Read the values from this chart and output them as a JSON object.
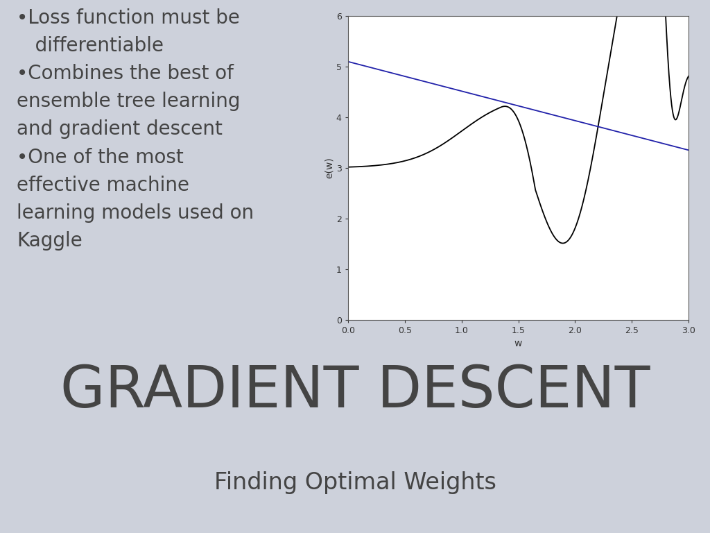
{
  "background_color": "#cdd1db",
  "title_main": "GRADIENT DESCENT",
  "title_sub": "Finding Optimal Weights",
  "plot_xlabel": "w",
  "plot_ylabel": "e(w)",
  "plot_xlim": [
    0.0,
    3.0
  ],
  "plot_ylim": [
    0.0,
    6.0
  ],
  "curve1_color": "#000000",
  "curve2_color": "#2222aa",
  "title_main_fontsize": 60,
  "title_sub_fontsize": 24,
  "bullet_fontsize": 20,
  "plot_bg": "#ffffff",
  "text_color": "#444444"
}
